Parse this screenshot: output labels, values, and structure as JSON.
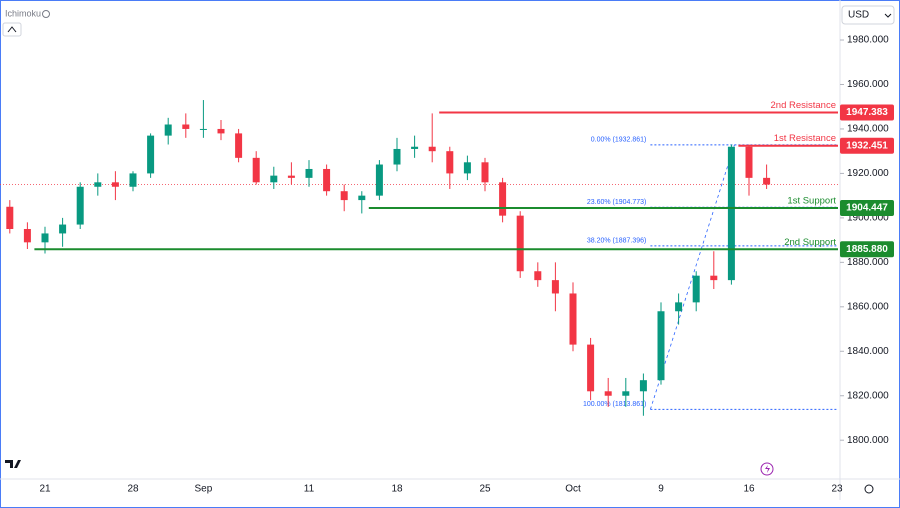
{
  "chart_data": {
    "type": "candlestick",
    "indicator": "Ichimoku",
    "currency": "USD",
    "categories": [
      null,
      null,
      "21",
      null,
      null,
      null,
      null,
      "28",
      null,
      null,
      null,
      "Sep",
      null,
      null,
      null,
      null,
      null,
      "11",
      null,
      null,
      null,
      null,
      "18",
      null,
      null,
      null,
      null,
      "25",
      null,
      null,
      null,
      null,
      "Oct",
      null,
      null,
      null,
      null,
      "9",
      null,
      null,
      null,
      null,
      "16",
      null,
      null,
      null,
      null,
      "23"
    ],
    "open": [
      1905,
      1895,
      1889,
      1893,
      1897,
      1914,
      1916,
      1914,
      1920,
      1937,
      1942,
      1940,
      1940,
      1938,
      1927,
      1916,
      1919,
      1918,
      1922,
      1912,
      1908,
      1910,
      1924,
      1931,
      1932,
      1930,
      1920,
      1925,
      1916,
      1901,
      1876,
      1872,
      1866,
      1843,
      1822,
      1820,
      1822,
      1827,
      1858,
      1862,
      1874,
      1872,
      1932,
      1918,
      null,
      null,
      null,
      null
    ],
    "high": [
      1908,
      1898,
      1896,
      1900,
      1916,
      1920,
      1921,
      1921,
      1938,
      1945,
      1947,
      1953,
      1944,
      1940,
      1930,
      1923,
      1925,
      1926,
      1924,
      1915,
      1912,
      1926,
      1936,
      1937,
      1947,
      1932,
      1928,
      1927,
      1918,
      1903,
      1880,
      1880,
      1871,
      1846,
      1828,
      1828,
      1830,
      1862,
      1866,
      1876,
      1885,
      1933,
      1933,
      1924,
      null,
      null,
      null,
      null
    ],
    "low": [
      1893,
      1886,
      1884,
      1887,
      1895,
      1910,
      1908,
      1912,
      1918,
      1933,
      1936,
      1936,
      1935,
      1925,
      1915,
      1913,
      1915,
      1914,
      1910,
      1903,
      1902,
      1908,
      1921,
      1927,
      1925,
      1913,
      1917,
      1912,
      1898,
      1873,
      1869,
      1858,
      1840,
      1818,
      1815,
      1815,
      1811,
      1825,
      1852,
      1858,
      1868,
      1870,
      1910,
      1913,
      null,
      null,
      null,
      null
    ],
    "close": [
      1895,
      1889,
      1893,
      1897,
      1914,
      1916,
      1914,
      1920,
      1937,
      1942,
      1940,
      1940,
      1938,
      1927,
      1916,
      1919,
      1918,
      1922,
      1912,
      1908,
      1910,
      1924,
      1931,
      1932,
      1930,
      1920,
      1925,
      1916,
      1901,
      1876,
      1872,
      1866,
      1843,
      1822,
      1820,
      1822,
      1827,
      1858,
      1862,
      1874,
      1872,
      1932,
      1918,
      1915,
      null,
      null,
      null,
      null
    ],
    "up_color": "#089981",
    "down_color": "#f23645",
    "ylim": [
      1783,
      1998
    ],
    "yticks": [
      {
        "value": 1800,
        "label": "1800.000"
      },
      {
        "value": 1820,
        "label": "1820.000"
      },
      {
        "value": 1840,
        "label": "1840.000"
      },
      {
        "value": 1860,
        "label": "1860.000"
      },
      {
        "value": 1880,
        "label": "1880.000"
      },
      {
        "value": 1900,
        "label": "1900.000"
      },
      {
        "value": 1920,
        "label": "1920.000"
      },
      {
        "value": 1940,
        "label": "1940.000"
      },
      {
        "value": 1960,
        "label": "1960.000"
      },
      {
        "value": 1980,
        "label": "1980.000"
      }
    ],
    "levels": {
      "names": [
        "2nd Resistance",
        "1st Resistance",
        "1st Support",
        "2nd Support"
      ],
      "values": [
        1947.383,
        1932.451,
        1904.447,
        1885.88
      ],
      "value_labels": [
        "1947.383",
        "1932.451",
        "1904.447",
        "1885.880"
      ],
      "start": [
        24,
        41,
        20,
        1
      ],
      "colors": [
        "#f23645",
        "#f23645",
        "#1b8c2e",
        "#1b8c2e"
      ]
    },
    "fibonacci": {
      "labels": [
        "0.00% (1932.861)",
        "23.60% (1904.773)",
        "38.20% (1887.396)",
        "100.00% (1813.861)"
      ],
      "values": [
        1932.861,
        1904.773,
        1887.396,
        1813.861
      ],
      "color": "#2962ff"
    }
  }
}
